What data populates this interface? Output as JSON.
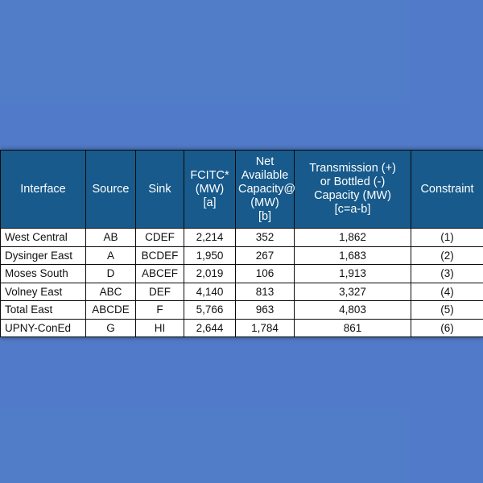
{
  "table": {
    "headers": [
      [
        "Interface"
      ],
      [
        "Source"
      ],
      [
        "Sink"
      ],
      [
        "FCITC*",
        "(MW)",
        "[a]"
      ],
      [
        "Net",
        "Available",
        "Capacity@",
        "(MW)",
        "[b]"
      ],
      [
        "Transmission (+)",
        "or Bottled (-)",
        "Capacity (MW)",
        "[c=a-b]"
      ],
      [
        "Constraint"
      ]
    ],
    "rows": [
      [
        "West Central",
        "AB",
        "CDEF",
        "2,214",
        "352",
        "1,862",
        "(1)"
      ],
      [
        "Dysinger East",
        "A",
        "BCDEF",
        "1,950",
        "267",
        "1,683",
        "(2)"
      ],
      [
        "Moses South",
        "D",
        "ABCEF",
        "2,019",
        "106",
        "1,913",
        "(3)"
      ],
      [
        "Volney East",
        "ABC",
        "DEF",
        "4,140",
        "813",
        "3,327",
        "(4)"
      ],
      [
        "Total East",
        "ABCDE",
        "F",
        "5,766",
        "963",
        "4,803",
        "(5)"
      ],
      [
        "UPNY-ConEd",
        "G",
        "HI",
        "2,644",
        "1,784",
        "861",
        "(6)"
      ]
    ]
  },
  "colors": {
    "header_bg": "#175a8b",
    "header_text": "#ffffff",
    "background": "#5f86c7"
  }
}
